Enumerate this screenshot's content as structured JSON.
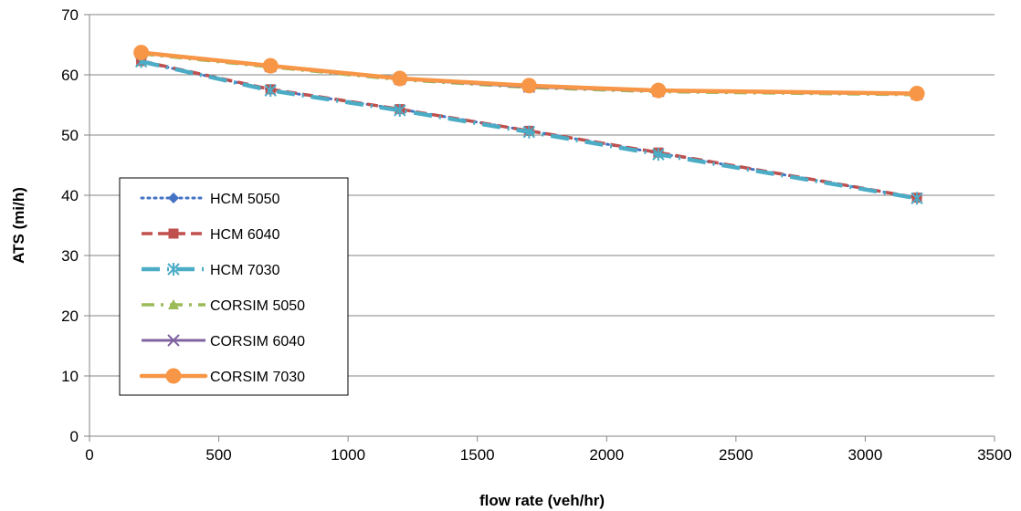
{
  "chart_data": {
    "type": "line",
    "title": "",
    "xlabel": "flow rate (veh/hr)",
    "ylabel": "ATS (mi/h)",
    "xlim": [
      0,
      3500
    ],
    "ylim": [
      0,
      70
    ],
    "xticks": [
      0,
      500,
      1000,
      1500,
      2000,
      2500,
      3000,
      3500
    ],
    "yticks": [
      0,
      10,
      20,
      30,
      40,
      50,
      60,
      70
    ],
    "grid": "horizontal",
    "legend_position": "left",
    "x": [
      200,
      700,
      1200,
      1700,
      2200,
      3200
    ],
    "series": [
      {
        "name": "HCM 5050",
        "color": "#4472C4",
        "marker": "diamond",
        "dash": "dotted",
        "values": [
          62.2,
          57.5,
          54.3,
          50.7,
          47.0,
          39.6
        ]
      },
      {
        "name": "HCM 6040",
        "color": "#C0504D",
        "marker": "square",
        "dash": "dashed",
        "values": [
          62.3,
          57.6,
          54.3,
          50.7,
          47.1,
          39.6
        ]
      },
      {
        "name": "HCM 7030",
        "color": "#4BACC6",
        "marker": "star",
        "dash": "long-dash-dot",
        "values": [
          62.2,
          57.4,
          54.1,
          50.5,
          46.8,
          39.5
        ]
      },
      {
        "name": "CORSIM 5050",
        "color": "#9BBB59",
        "marker": "triangle",
        "dash": "dash-dot",
        "values": [
          63.5,
          61.3,
          59.2,
          57.9,
          57.2,
          56.7
        ]
      },
      {
        "name": "CORSIM 6040",
        "color": "#8064A2",
        "marker": "x",
        "dash": "solid",
        "values": [
          63.6,
          61.4,
          59.3,
          58.0,
          57.3,
          56.8
        ]
      },
      {
        "name": "CORSIM 7030",
        "color": "#F79646",
        "marker": "circle",
        "dash": "solid-thick",
        "values": [
          63.7,
          61.5,
          59.4,
          58.2,
          57.4,
          56.9
        ]
      }
    ]
  }
}
